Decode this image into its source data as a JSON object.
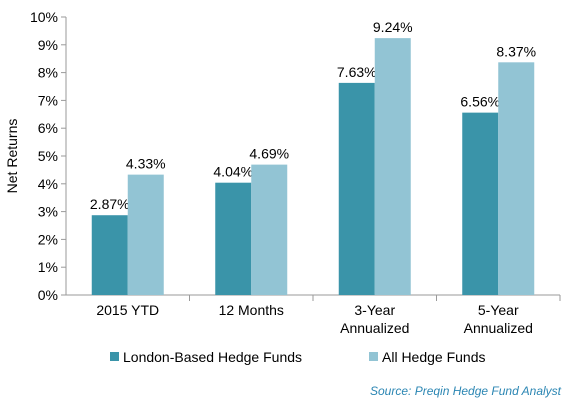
{
  "chart_data": {
    "type": "bar",
    "categories": [
      "2015 YTD",
      "12 Months",
      "3-Year\nAnnualized",
      "5-Year\nAnnualized"
    ],
    "series": [
      {
        "name": "London-Based Hedge Funds",
        "values": [
          2.87,
          4.04,
          7.63,
          6.56
        ],
        "color": "#3a94a9"
      },
      {
        "name": "All Hedge Funds",
        "values": [
          4.33,
          4.69,
          9.24,
          8.37
        ],
        "color": "#92c4d4"
      }
    ],
    "data_labels": [
      [
        "2.87%",
        "4.04%",
        "7.63%",
        "6.56%"
      ],
      [
        "4.33%",
        "4.69%",
        "9.24%",
        "8.37%"
      ]
    ],
    "ylabel": "Net Returns",
    "ylim": [
      0,
      10
    ],
    "yticks": [
      "0%",
      "1%",
      "2%",
      "3%",
      "4%",
      "5%",
      "6%",
      "7%",
      "8%",
      "9%",
      "10%"
    ],
    "grid": false,
    "legend": "bottom"
  },
  "source": "Source: Preqin Hedge Fund Analyst"
}
